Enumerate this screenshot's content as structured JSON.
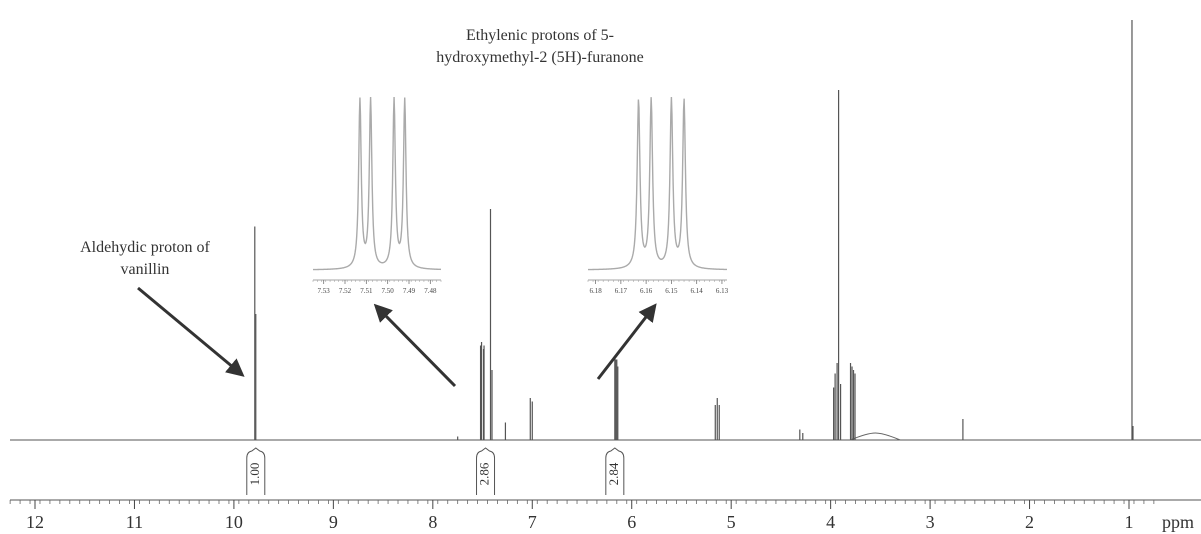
{
  "chart_data": {
    "type": "line",
    "xlabel": "ppm",
    "xlim": [
      12.25,
      0.75
    ],
    "x_ticks": [
      12,
      11,
      10,
      9,
      8,
      7,
      6,
      5,
      4,
      3,
      2,
      1
    ],
    "x_tick_labels": [
      "12",
      "11",
      "10",
      "9",
      "8",
      "7",
      "6",
      "5",
      "4",
      "3",
      "2",
      "1"
    ],
    "annotations": [
      {
        "text": "Aldehydic proton of\nvanillin",
        "x": 9.78
      },
      {
        "text": "Ethylenic protons of 5-\nhydroxymethyl-2 (5H)-furanone",
        "x": 6.8
      }
    ],
    "peaks": [
      {
        "x": 9.79,
        "h": 0.61
      },
      {
        "x": 9.78,
        "h": 0.36
      },
      {
        "x": 7.75,
        "h": 0.01
      },
      {
        "x": 7.52,
        "h": 0.27
      },
      {
        "x": 7.51,
        "h": 0.28
      },
      {
        "x": 7.49,
        "h": 0.26
      },
      {
        "x": 7.485,
        "h": 0.27
      },
      {
        "x": 7.42,
        "h": 0.66
      },
      {
        "x": 7.405,
        "h": 0.2
      },
      {
        "x": 7.27,
        "h": 0.05
      },
      {
        "x": 7.02,
        "h": 0.12
      },
      {
        "x": 7.0,
        "h": 0.11
      },
      {
        "x": 6.17,
        "h": 0.24
      },
      {
        "x": 6.16,
        "h": 0.23
      },
      {
        "x": 6.15,
        "h": 0.23
      },
      {
        "x": 6.14,
        "h": 0.21
      },
      {
        "x": 5.16,
        "h": 0.1
      },
      {
        "x": 5.14,
        "h": 0.12
      },
      {
        "x": 5.12,
        "h": 0.1
      },
      {
        "x": 4.31,
        "h": 0.03
      },
      {
        "x": 4.28,
        "h": 0.02
      },
      {
        "x": 3.97,
        "h": 0.15
      },
      {
        "x": 3.955,
        "h": 0.19
      },
      {
        "x": 3.935,
        "h": 0.22
      },
      {
        "x": 3.92,
        "h": 1.0
      },
      {
        "x": 3.9,
        "h": 0.16
      },
      {
        "x": 3.8,
        "h": 0.22
      },
      {
        "x": 3.785,
        "h": 0.21
      },
      {
        "x": 3.77,
        "h": 0.2
      },
      {
        "x": 3.755,
        "h": 0.19
      },
      {
        "x": 2.67,
        "h": 0.06
      },
      {
        "x": 0.97,
        "h": 1.2
      },
      {
        "x": 0.96,
        "h": 0.04
      }
    ],
    "broad_features": [
      {
        "x": 3.55,
        "h": 0.02,
        "width": 0.25
      }
    ],
    "integrals": [
      {
        "x": 9.78,
        "value": "1.00"
      },
      {
        "x": 7.47,
        "value": "2.86"
      },
      {
        "x": 6.17,
        "value": "2.84"
      }
    ],
    "insets": [
      {
        "x_range": [
          7.535,
          7.475
        ],
        "ticks": [
          7.53,
          7.52,
          7.51,
          7.5,
          7.49,
          7.48
        ],
        "tick_labels": [
          "7.53",
          "7.52",
          "7.51",
          "7.50",
          "7.49",
          "7.48"
        ],
        "peaks": [
          7.513,
          7.508,
          7.497,
          7.492
        ]
      },
      {
        "x_range": [
          6.183,
          6.128
        ],
        "ticks": [
          6.18,
          6.17,
          6.16,
          6.15,
          6.14,
          6.13
        ],
        "tick_labels": [
          "6.18",
          "6.17",
          "6.16",
          "6.15",
          "6.14",
          "6.13"
        ],
        "peaks": [
          6.163,
          6.158,
          6.15,
          6.145
        ]
      }
    ]
  }
}
